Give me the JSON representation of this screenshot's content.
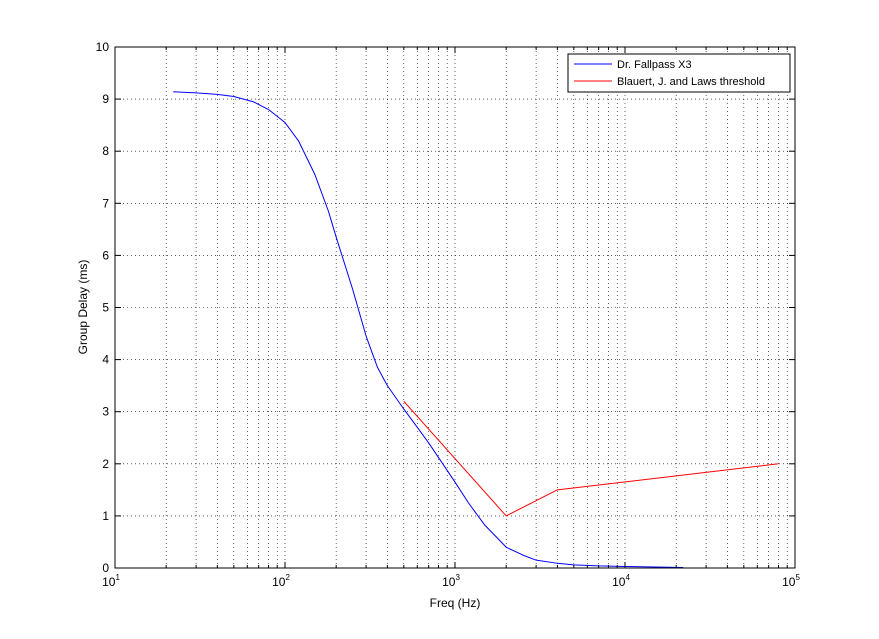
{
  "chart_data": {
    "type": "line",
    "title": "",
    "xlabel": "Freq (Hz)",
    "ylabel": "Group Delay (ms)",
    "xscale": "log",
    "xlim": [
      10,
      100000
    ],
    "ylim": [
      0,
      10
    ],
    "xticks": [
      {
        "base": "10",
        "exp": "1"
      },
      {
        "base": "10",
        "exp": "2"
      },
      {
        "base": "10",
        "exp": "3"
      },
      {
        "base": "10",
        "exp": "4"
      },
      {
        "base": "10",
        "exp": "5"
      }
    ],
    "yticks": [
      "0",
      "1",
      "2",
      "3",
      "4",
      "5",
      "6",
      "7",
      "8",
      "9",
      "10"
    ],
    "grid": true,
    "legend_position": "top-right",
    "series": [
      {
        "name": "Dr. Fallpass X3",
        "color": "#0000ff",
        "x": [
          22,
          30,
          40,
          50,
          65,
          80,
          100,
          120,
          150,
          180,
          200,
          250,
          300,
          350,
          400,
          500,
          600,
          700,
          800,
          1000,
          1200,
          1500,
          2000,
          2500,
          3000,
          4000,
          5000,
          7000,
          10000,
          15000,
          22000
        ],
        "y": [
          9.14,
          9.12,
          9.09,
          9.05,
          8.95,
          8.8,
          8.55,
          8.2,
          7.55,
          6.85,
          6.35,
          5.35,
          4.45,
          3.85,
          3.5,
          3.05,
          2.7,
          2.4,
          2.12,
          1.65,
          1.25,
          0.82,
          0.4,
          0.25,
          0.15,
          0.09,
          0.06,
          0.04,
          0.03,
          0.02,
          0.01
        ]
      },
      {
        "name": "Blauert, J. and Laws threshold",
        "color": "#ff0000",
        "x": [
          500,
          2000,
          4000,
          80000
        ],
        "y": [
          3.2,
          1.0,
          1.5,
          2.0
        ]
      }
    ]
  }
}
